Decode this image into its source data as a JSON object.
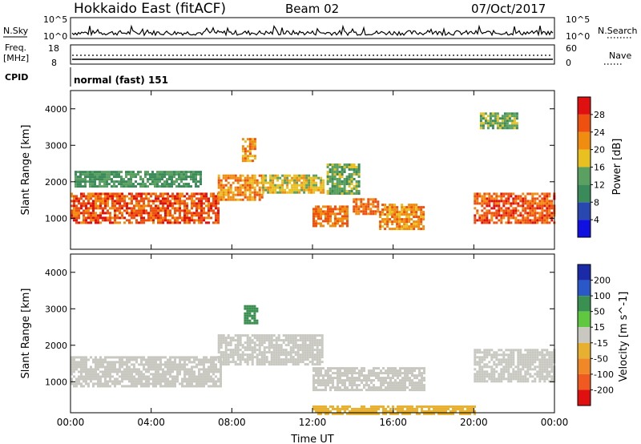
{
  "header": {
    "title": "Hokkaido East (fitACF)",
    "beam": "Beam 02",
    "date": "07/Oct/2017"
  },
  "strip_labels": {
    "nsky": "N.Sky",
    "nsky_ticks": [
      "10^5",
      "10^0"
    ],
    "nsearch": "N.Search",
    "freq_line1": "Freq.",
    "freq_line2": "[MHz]",
    "freq_ticks": [
      "18",
      "8"
    ],
    "nave": "Nave",
    "nave_ticks": [
      "60",
      "0"
    ],
    "cpid": "CPID",
    "cpid_value": "normal (fast) 151"
  },
  "colors": {
    "power_scale": [
      "#1010e0",
      "#2848b0",
      "#3a8a5a",
      "#5aa060",
      "#e8c020",
      "#f08c10",
      "#ee5010",
      "#e01010"
    ],
    "velocity_scale": [
      "#1a2aa8",
      "#2a58c8",
      "#3a9050",
      "#60c840",
      "#c8c8c0",
      "#e8b030",
      "#f08828",
      "#f05a20",
      "#e01010"
    ]
  },
  "chart_data": [
    {
      "type": "heatmap",
      "ylabel": "Slant Range [km]",
      "xlabel": "",
      "x_ticks": [
        "00:00",
        "04:00",
        "08:00",
        "12:00",
        "16:00",
        "20:00",
        "00:00"
      ],
      "y_ticks": [
        1000,
        2000,
        3000,
        4000
      ],
      "ylim": [
        150,
        4500
      ],
      "colorbar": {
        "label": "Power [dB]",
        "ticks": [
          4,
          8,
          12,
          16,
          20,
          24,
          28
        ],
        "range": [
          0,
          32
        ]
      },
      "regions": [
        {
          "t0": 0.0,
          "t1": 7.3,
          "r0": 900,
          "r1": 1700,
          "value": 26
        },
        {
          "t0": 7.3,
          "t1": 9.5,
          "r0": 1500,
          "r1": 2200,
          "value": 22
        },
        {
          "t0": 9.5,
          "t1": 12.5,
          "r0": 1700,
          "r1": 2200,
          "value": 18
        },
        {
          "t0": 8.5,
          "t1": 9.2,
          "r0": 2600,
          "r1": 3200,
          "value": 22
        },
        {
          "t0": 12.0,
          "t1": 13.7,
          "r0": 800,
          "r1": 1350,
          "value": 24
        },
        {
          "t0": 14.0,
          "t1": 15.2,
          "r0": 1150,
          "r1": 1550,
          "value": 24
        },
        {
          "t0": 15.3,
          "t1": 17.5,
          "r0": 700,
          "r1": 1400,
          "value": 22
        },
        {
          "t0": 20.0,
          "t1": 24.0,
          "r0": 900,
          "r1": 1700,
          "value": 26
        },
        {
          "t0": 0.2,
          "t1": 6.5,
          "r0": 1900,
          "r1": 2300,
          "value": 12
        },
        {
          "t0": 12.7,
          "t1": 14.3,
          "r0": 1700,
          "r1": 2500,
          "value": 14
        },
        {
          "t0": 20.3,
          "t1": 22.2,
          "r0": 3500,
          "r1": 3900,
          "value": 14
        }
      ]
    },
    {
      "type": "heatmap",
      "ylabel": "Slant Range [km]",
      "xlabel": "Time UT",
      "x_ticks": [
        "00:00",
        "04:00",
        "08:00",
        "12:00",
        "16:00",
        "20:00",
        "00:00"
      ],
      "y_ticks": [
        1000,
        2000,
        3000,
        4000
      ],
      "ylim": [
        150,
        4500
      ],
      "colorbar": {
        "label": "Velocity [m s^-1]",
        "ticks": [
          200,
          100,
          50,
          15,
          -15,
          -50,
          -100,
          -200
        ]
      },
      "regions": [
        {
          "t0": 0.0,
          "t1": 7.5,
          "r0": 900,
          "r1": 1700,
          "value": 0
        },
        {
          "t0": 7.3,
          "t1": 12.5,
          "r0": 1500,
          "r1": 2300,
          "value": 0
        },
        {
          "t0": 8.6,
          "t1": 9.2,
          "r0": 2600,
          "r1": 3100,
          "value": 60
        },
        {
          "t0": 12.0,
          "t1": 17.5,
          "r0": 800,
          "r1": 1400,
          "value": 0
        },
        {
          "t0": 20.0,
          "t1": 24.0,
          "r0": 1000,
          "r1": 1900,
          "value": 0
        },
        {
          "t0": 12.0,
          "t1": 20.0,
          "r0": 150,
          "r1": 350,
          "value": -30
        }
      ]
    }
  ]
}
